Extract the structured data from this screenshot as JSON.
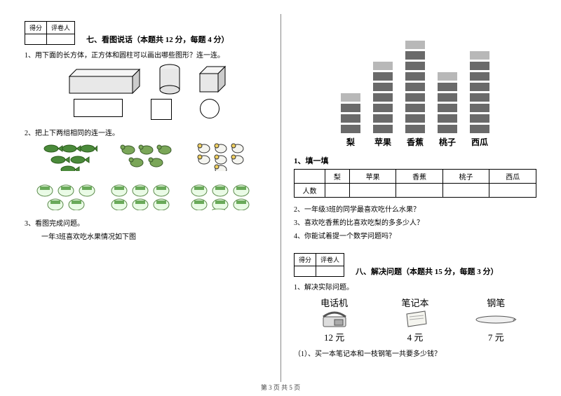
{
  "section7": {
    "score_header": [
      "得分",
      "评卷人"
    ],
    "title": "七、看图说话（本题共 12 分，每题 4 分）",
    "q1": "1、用下面的长方体，正方体和圆柱可以画出哪些图形？连一连。",
    "q2": "2、把上下两组相同的连一连。",
    "q3_a": "3、看图完成问题。",
    "q3_b": "一年3班喜欢吃水果情况如下图"
  },
  "chart": {
    "labels": [
      "梨",
      "苹果",
      "香蕉",
      "桃子",
      "西瓜"
    ],
    "values": [
      4,
      7,
      9,
      6,
      8
    ],
    "seg_color": "#6a6a6a",
    "top_color": "#b8b8b8",
    "max_height": 160
  },
  "fruit_table": {
    "sub": "1、填一填",
    "row1": [
      "",
      "梨",
      "苹果",
      "香蕉",
      "桃子",
      "西瓜"
    ],
    "row2": [
      "人数",
      "",
      "",
      "",
      "",
      ""
    ]
  },
  "follow_q": {
    "q2": "2、一年级3班的同学最喜欢吃什么水果？",
    "q3": "3、喜欢吃香蕉的比喜欢吃梨的多多少人？",
    "q4": "4、你能试着提一个数学问题吗？"
  },
  "section8": {
    "score_header": [
      "得分",
      "评卷人"
    ],
    "title": "八、解决问题（本题共 15 分，每题 3 分）",
    "q1": "1、解决实际问题。",
    "items": {
      "phone": {
        "label": "电话机",
        "price": "12 元"
      },
      "notebook": {
        "label": "笔记本",
        "price": "4 元"
      },
      "pen": {
        "label": "钢笔",
        "price": "7 元"
      }
    },
    "q1_1": "（1）、买一本笔记本和一枝钢笔一共要多少钱？"
  },
  "footer": "第 3 页  共 5 页"
}
